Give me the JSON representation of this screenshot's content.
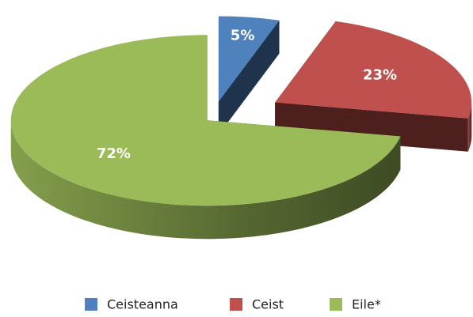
{
  "chart_data": {
    "type": "pie",
    "categories": [
      "Ceisteanna",
      "Ceist",
      "Eile*"
    ],
    "values": [
      5,
      23,
      72
    ],
    "value_labels": [
      "5%",
      "23%",
      "72%"
    ],
    "colors": [
      "#4f81bd",
      "#c0504d",
      "#9bbb59"
    ],
    "legend": "bottom"
  }
}
